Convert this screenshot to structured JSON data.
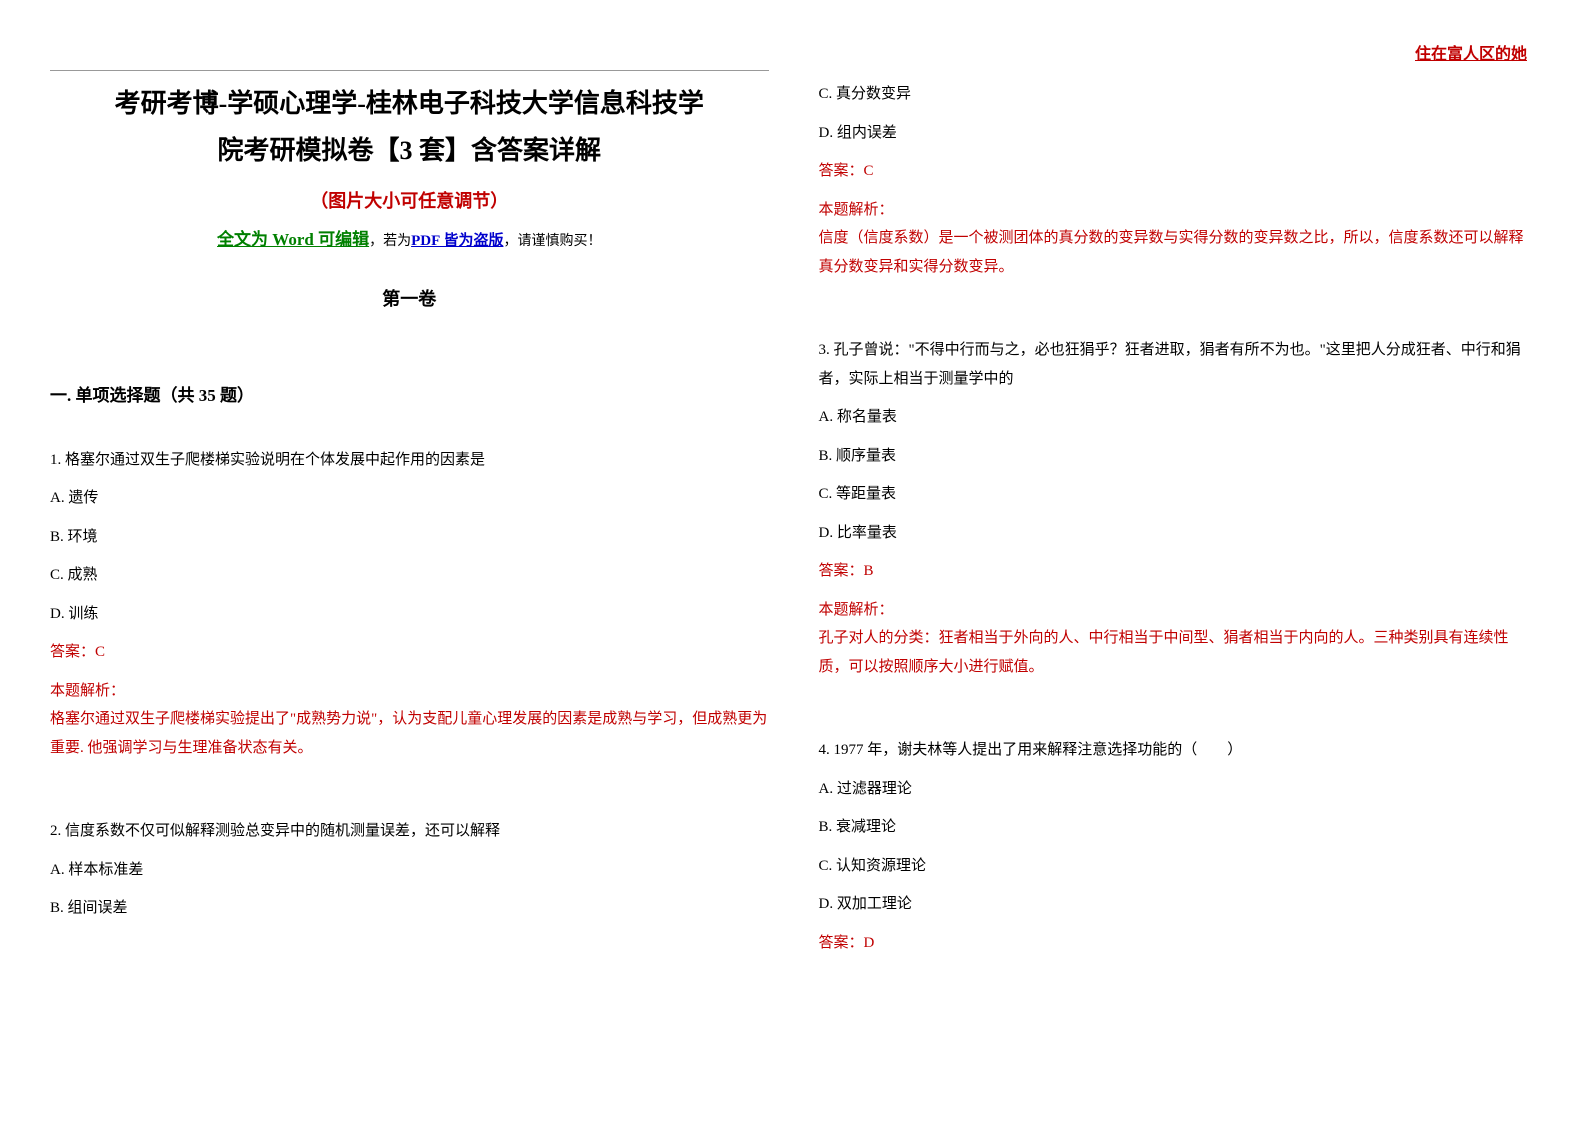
{
  "watermark": "住在富人区的她",
  "title_line1": "考研考博-学硕心理学-桂林电子科技大学信息科技学",
  "title_line2": "院考研模拟卷【3 套】含答案详解",
  "subtitle": "（图片大小可任意调节）",
  "editable": {
    "prefix": "全文为 Word 可编辑",
    "mid": "，若为",
    "pdf": "PDF 皆为盗版",
    "suffix": "，请谨慎购买！"
  },
  "volume": "第一卷",
  "section": "一. 单项选择题（共 35 题）",
  "questions": [
    {
      "text": "1. 格塞尔通过双生子爬楼梯实验说明在个体发展中起作用的因素是",
      "options": [
        "A. 遗传",
        "B. 环境",
        "C. 成熟",
        "D. 训练"
      ],
      "answer": "答案：C",
      "explanation_label": "本题解析：",
      "explanation": "格塞尔通过双生子爬楼梯实验提出了\"成熟势力说\"，认为支配儿童心理发展的因素是成熟与学习，但成熟更为重要. 他强调学习与生理准备状态有关。"
    },
    {
      "text": "2. 信度系数不仅可似解释测验总变异中的随机测量误差，还可以解释",
      "options_partial": [
        "A. 样本标准差",
        "B. 组间误差"
      ],
      "options_continued": [
        "C. 真分数变异",
        "D. 组内误差"
      ],
      "answer": "答案：C",
      "explanation_label": "本题解析：",
      "explanation": "信度（信度系数）是一个被测团体的真分数的变异数与实得分数的变异数之比，所以，信度系数还可以解释真分数变异和实得分数变异。"
    },
    {
      "text": "3. 孔子曾说：\"不得中行而与之，必也狂狷乎？狂者进取，狷者有所不为也。\"这里把人分成狂者、中行和狷者，实际上相当于测量学中的",
      "options": [
        "A. 称名量表",
        "B. 顺序量表",
        "C. 等距量表",
        "D. 比率量表"
      ],
      "answer": "答案：B",
      "explanation_label": "本题解析：",
      "explanation": "孔子对人的分类：狂者相当于外向的人、中行相当于中间型、狷者相当于内向的人。三种类别具有连续性质，可以按照顺序大小进行赋值。"
    },
    {
      "text": "4. 1977 年，谢夫林等人提出了用来解释注意选择功能的（　　）",
      "options": [
        "A. 过滤器理论",
        "B. 衰减理论",
        "C. 认知资源理论",
        "D. 双加工理论"
      ],
      "answer": "答案：D"
    }
  ],
  "colors": {
    "red": "#c00000",
    "green": "#008000",
    "blue": "#0000cc",
    "text": "#000000",
    "background": "#ffffff",
    "border": "#999999"
  },
  "fonts": {
    "title_size": 26,
    "subtitle_size": 18,
    "body_size": 15,
    "section_size": 17
  }
}
